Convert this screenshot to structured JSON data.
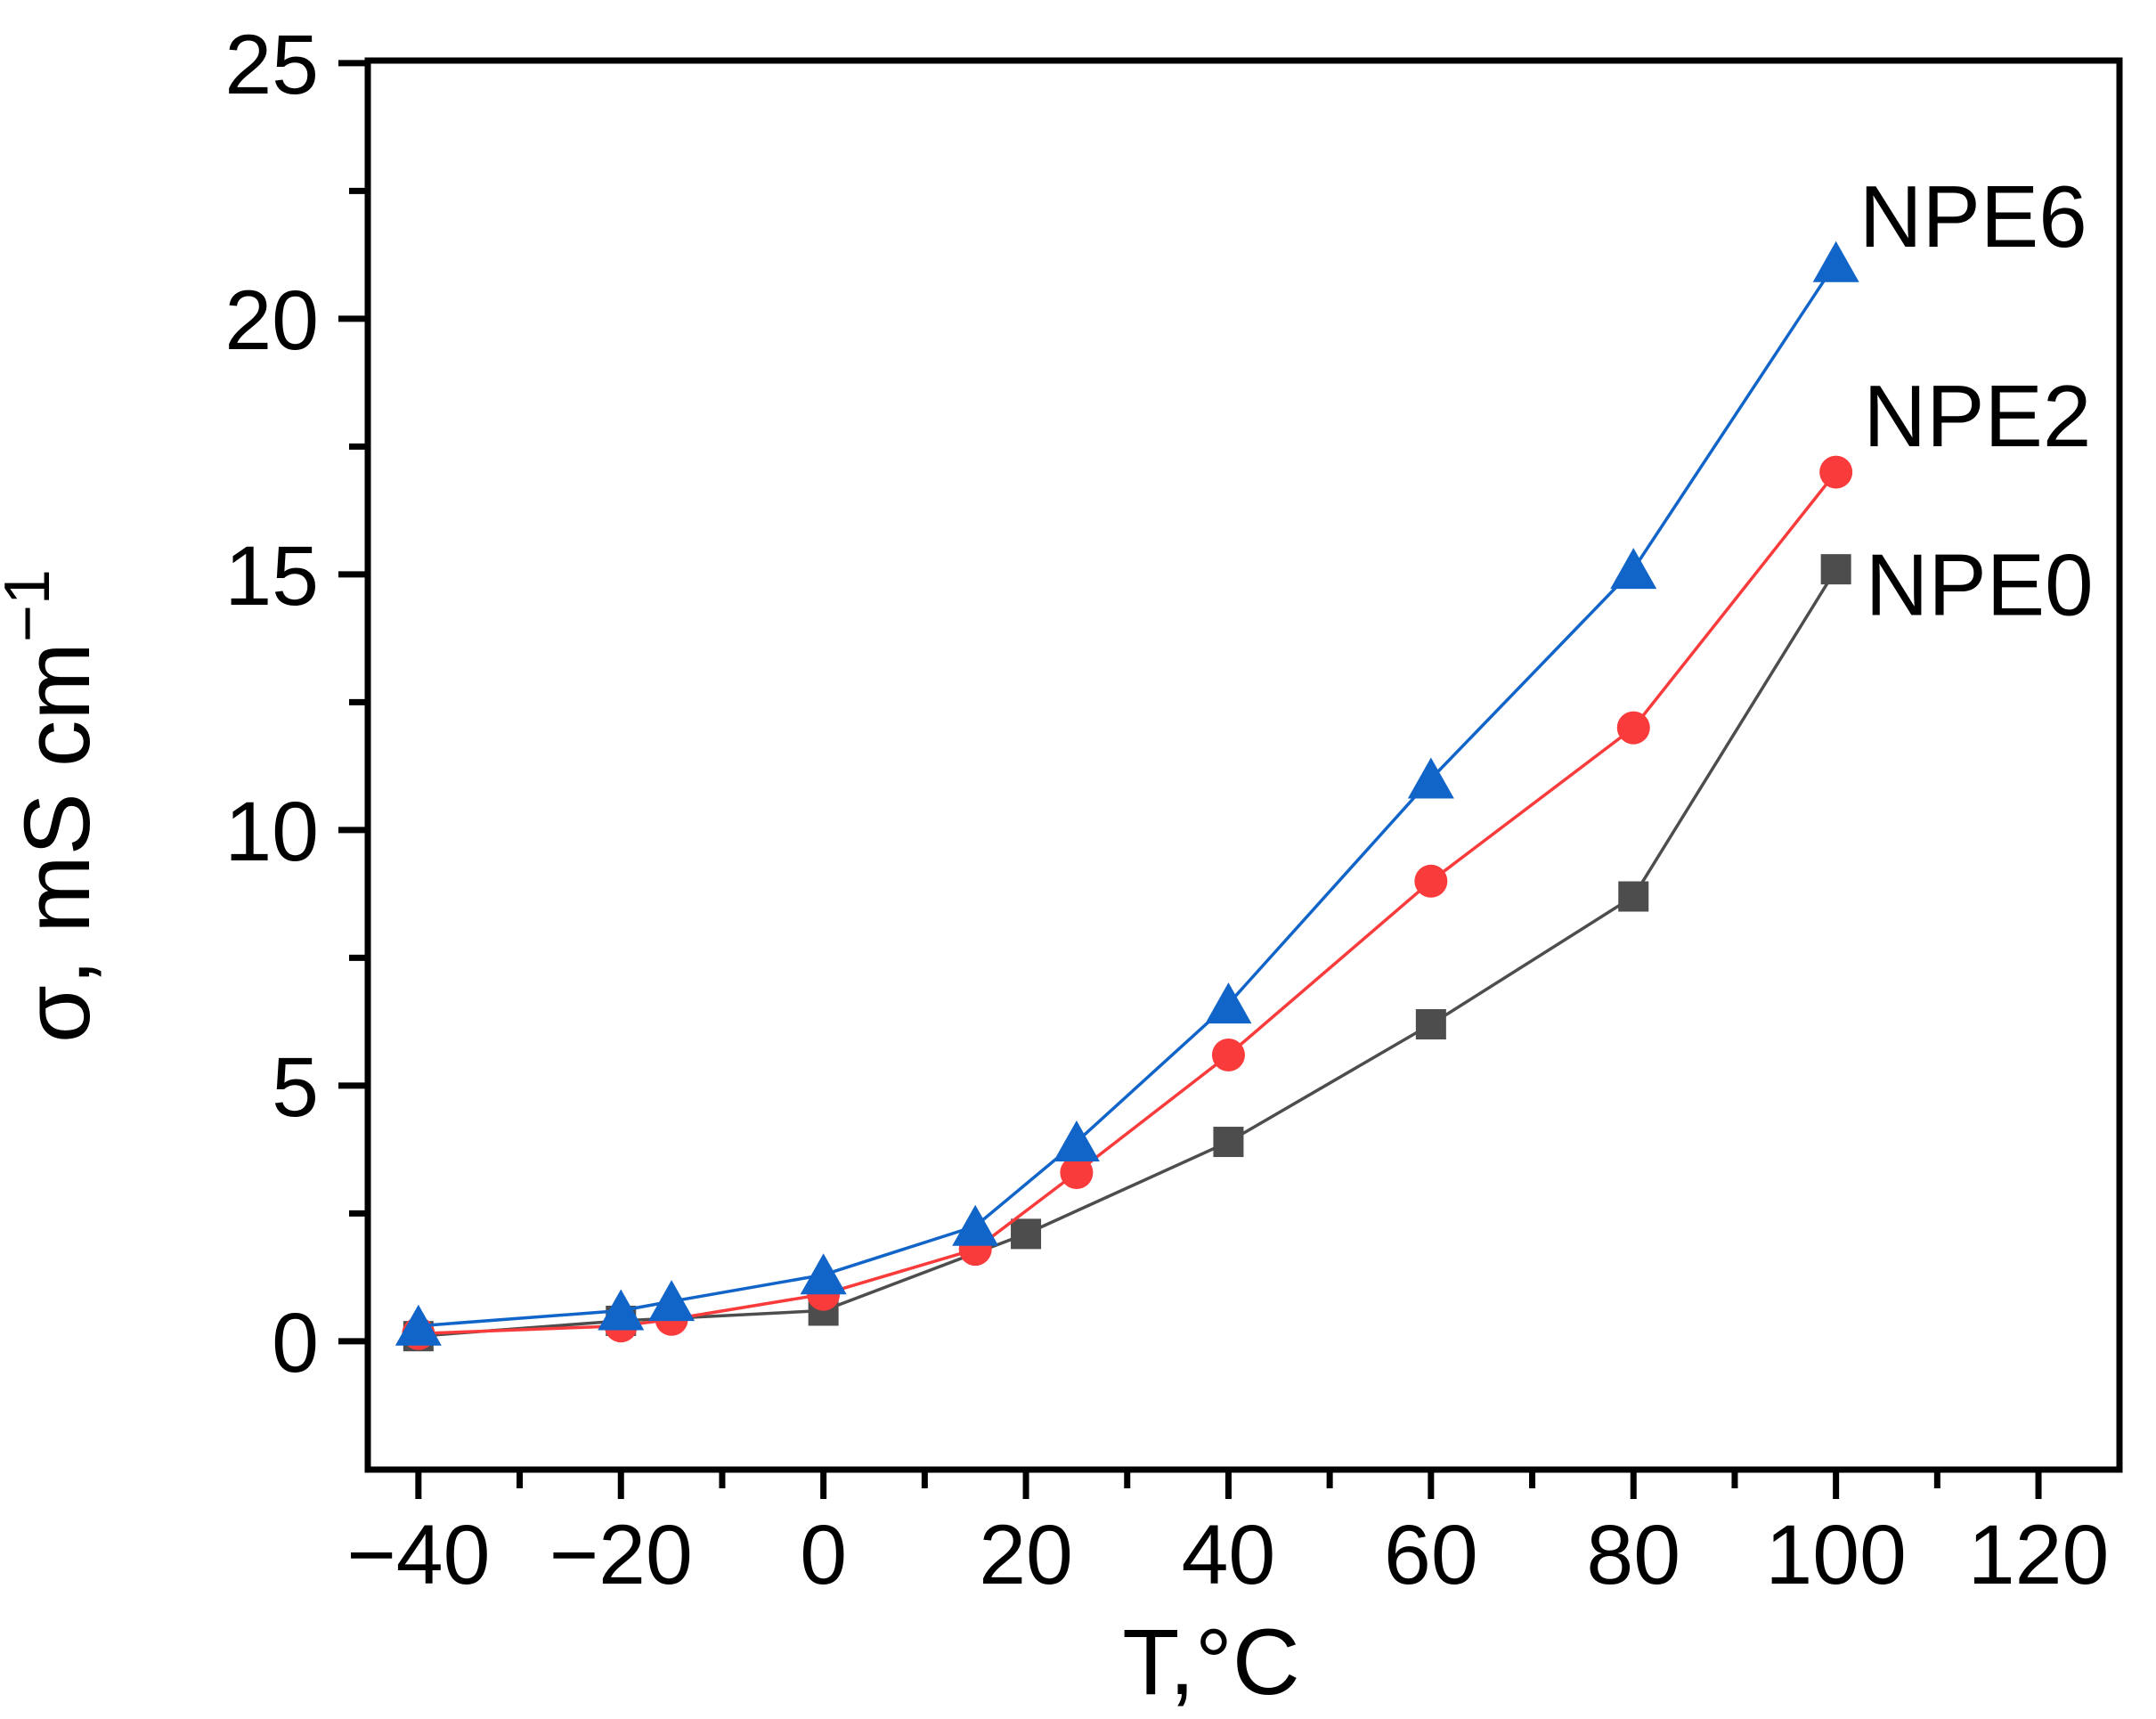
{
  "chart_data": {
    "type": "line",
    "title": "",
    "xlabel": "T,°C",
    "ylabel": "σ, mS cm⁻¹",
    "ylabel_main": "σ, mS cm",
    "ylabel_sup": "−1",
    "grid": "off",
    "legend_position": "annotations-right-of-last-points",
    "x_axis": {
      "min": -45,
      "max": 128,
      "major_ticks": [
        -40,
        -20,
        0,
        20,
        40,
        60,
        80,
        100,
        120
      ],
      "minor_ticks": [
        -30,
        -10,
        10,
        30,
        50,
        70,
        90,
        110
      ],
      "tick_labels": [
        "−40",
        "−20",
        "0",
        "20",
        "40",
        "60",
        "80",
        "100",
        "120"
      ]
    },
    "y_axis": {
      "min": -2.51,
      "max": 25.05,
      "major_ticks": [
        0,
        5,
        10,
        15,
        20,
        25
      ],
      "minor_ticks": [
        2.5,
        7.5,
        12.5,
        17.5,
        22.5
      ],
      "tick_labels": [
        "0",
        "5",
        "10",
        "15",
        "20",
        "25"
      ]
    },
    "series": [
      {
        "name": "NPE0",
        "marker": "square",
        "color": "#4d4d4d",
        "line_width": 3.5,
        "points": [
          [
            -40,
            0.1
          ],
          [
            -20,
            0.4
          ],
          [
            0,
            0.6
          ],
          [
            20,
            2.1
          ],
          [
            40,
            3.9
          ],
          [
            60,
            6.2
          ],
          [
            80,
            8.7
          ],
          [
            100,
            15.1
          ]
        ],
        "label_anchor": [
          102.9,
          14.8
        ]
      },
      {
        "name": "NPE2",
        "marker": "circle",
        "color": "#f93b3b",
        "line_width": 3.5,
        "points": [
          [
            -40,
            0.15
          ],
          [
            -20,
            0.3
          ],
          [
            -15,
            0.43
          ],
          [
            0,
            0.92
          ],
          [
            15,
            1.8
          ],
          [
            25,
            3.3
          ],
          [
            40,
            5.6
          ],
          [
            60,
            9.0
          ],
          [
            80,
            12.0
          ],
          [
            100,
            17.0
          ]
        ],
        "label_anchor": [
          102.7,
          18.1
        ]
      },
      {
        "name": "NPE6",
        "marker": "triangle",
        "color": "#1164c8",
        "line_width": 3.5,
        "points": [
          [
            -40,
            0.3
          ],
          [
            -20,
            0.6
          ],
          [
            -15,
            0.78
          ],
          [
            0,
            1.3
          ],
          [
            15,
            2.25
          ],
          [
            25,
            3.9
          ],
          [
            40,
            6.6
          ],
          [
            60,
            11.0
          ],
          [
            80,
            15.1
          ],
          [
            100,
            21.1
          ]
        ],
        "label_anchor": [
          102.3,
          22.0
        ]
      }
    ],
    "frame_color": "#000000"
  }
}
